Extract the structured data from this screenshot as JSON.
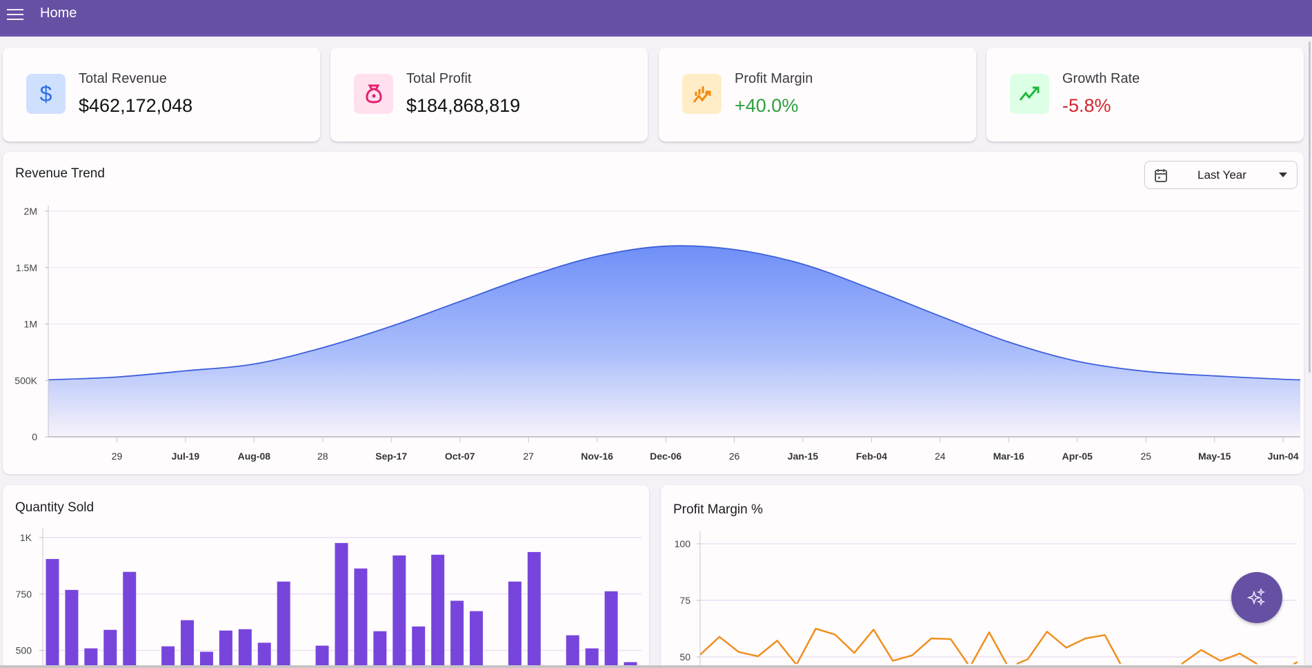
{
  "header": {
    "title": "Home",
    "menu_icon": "hamburger-icon"
  },
  "kpis": [
    {
      "title": "Total Revenue",
      "value": "$462,172,048",
      "icon": "dollar-icon",
      "icon_bg": "#cfe0ff",
      "icon_color": "#2f6fe4",
      "value_color": "#111111"
    },
    {
      "title": "Total Profit",
      "value": "$184,868,819",
      "icon": "money-bag-icon",
      "icon_bg": "#ffe0ef",
      "icon_color": "#e3206f",
      "value_color": "#111111"
    },
    {
      "title": "Profit Margin",
      "value": "+40.0%",
      "icon": "chart-up-icon",
      "icon_bg": "#ffedc7",
      "icon_color": "#f08a12",
      "value_color": "#2e9e3e"
    },
    {
      "title": "Growth Rate",
      "value": "-5.8%",
      "icon": "trend-up-icon",
      "icon_bg": "#dcffe6",
      "icon_color": "#22b83a",
      "value_color": "#d2272d"
    }
  ],
  "revenue": {
    "title": "Revenue Trend",
    "range_select": "Last Year"
  },
  "quantity": {
    "title": "Quantity Sold"
  },
  "margin": {
    "title": "Profit Margin %"
  },
  "chart_data": [
    {
      "type": "area",
      "title": "Revenue Trend",
      "ylim": [
        0,
        2000000
      ],
      "yticks": [
        {
          "v": 0,
          "label": "0"
        },
        {
          "v": 500000,
          "label": "500K"
        },
        {
          "v": 1000000,
          "label": "1M"
        },
        {
          "v": 1500000,
          "label": "1.5M"
        },
        {
          "v": 2000000,
          "label": "2M"
        }
      ],
      "xlim": [
        0,
        365
      ],
      "xticks": [
        {
          "d": 20,
          "label": "29",
          "bold": false
        },
        {
          "d": 40,
          "label": "Jul-19",
          "bold": true
        },
        {
          "d": 60,
          "label": "Aug-08",
          "bold": true
        },
        {
          "d": 80,
          "label": "28",
          "bold": false
        },
        {
          "d": 100,
          "label": "Sep-17",
          "bold": true
        },
        {
          "d": 120,
          "label": "Oct-07",
          "bold": true
        },
        {
          "d": 140,
          "label": "27",
          "bold": false
        },
        {
          "d": 160,
          "label": "Nov-16",
          "bold": true
        },
        {
          "d": 180,
          "label": "Dec-06",
          "bold": true
        },
        {
          "d": 200,
          "label": "26",
          "bold": false
        },
        {
          "d": 220,
          "label": "Jan-15",
          "bold": true
        },
        {
          "d": 240,
          "label": "Feb-04",
          "bold": true
        },
        {
          "d": 260,
          "label": "24",
          "bold": false
        },
        {
          "d": 280,
          "label": "Mar-16",
          "bold": true
        },
        {
          "d": 300,
          "label": "Apr-05",
          "bold": true
        },
        {
          "d": 320,
          "label": "25",
          "bold": false
        },
        {
          "d": 340,
          "label": "May-15",
          "bold": true
        },
        {
          "d": 360,
          "label": "Jun-04",
          "bold": true
        }
      ],
      "x": [
        0,
        20,
        40,
        60,
        80,
        100,
        120,
        140,
        160,
        180,
        200,
        220,
        240,
        260,
        280,
        300,
        320,
        340,
        360,
        365
      ],
      "values": [
        505000,
        530000,
        585000,
        645000,
        790000,
        980000,
        1200000,
        1420000,
        1600000,
        1690000,
        1660000,
        1530000,
        1310000,
        1070000,
        840000,
        670000,
        580000,
        540000,
        510000,
        505000
      ],
      "line_color": "#3d5fd9",
      "fill_color": "#6f8ff8"
    },
    {
      "type": "bar",
      "title": "Quantity Sold",
      "ylim": [
        0,
        1000
      ],
      "yticks": [
        {
          "v": 500,
          "label": "500"
        },
        {
          "v": 750,
          "label": "750"
        },
        {
          "v": 1000,
          "label": "1K"
        }
      ],
      "values": [
        905,
        768,
        509,
        591,
        848,
        null,
        518,
        634,
        494,
        588,
        594,
        534,
        805,
        null,
        521,
        976,
        863,
        585,
        921,
        606,
        924,
        720,
        674,
        null,
        805,
        936,
        null,
        567,
        509,
        762,
        448
      ],
      "color": "#7845dc"
    },
    {
      "type": "line",
      "title": "Profit Margin %",
      "ylim": [
        0,
        100
      ],
      "yticks": [
        {
          "v": 50,
          "label": "50"
        },
        {
          "v": 75,
          "label": "75"
        },
        {
          "v": 100,
          "label": "100"
        }
      ],
      "values": [
        51.0,
        58.9,
        52.2,
        50.3,
        57.2,
        46.6,
        62.5,
        59.9,
        51.8,
        62.1,
        48.3,
        50.7,
        58.2,
        57.9,
        45.6,
        60.9,
        45.4,
        49.0,
        61.2,
        54.1,
        58.2,
        59.7,
        44,
        46.2,
        44,
        47.0,
        53.1,
        48.3,
        51.5,
        46.4,
        44,
        47.7
      ],
      "color": "#ef8f1f"
    }
  ],
  "fab": {
    "icon": "sparkles-icon"
  }
}
